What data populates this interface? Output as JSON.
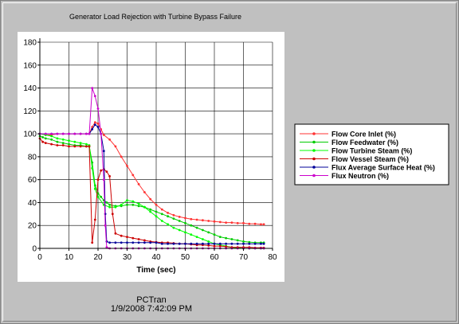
{
  "chart_data": {
    "type": "line",
    "title": "Generator Load Rejection with Turbine Bypass Failure",
    "xlabel": "Time (sec)",
    "ylabel": "",
    "xlim": [
      0,
      80
    ],
    "ylim": [
      0,
      180
    ],
    "xticks": [
      "0",
      "10",
      "20",
      "30",
      "40",
      "50",
      "60",
      "70",
      "80"
    ],
    "yticks": [
      "0",
      "20",
      "40",
      "60",
      "80",
      "100",
      "120",
      "140",
      "160",
      "180"
    ],
    "grid": true,
    "legend_position": "right",
    "series": [
      {
        "name": "Flow Core Inlet (%)",
        "color": "#ff3333",
        "points": [
          [
            0,
            100
          ],
          [
            2,
            99
          ],
          [
            4,
            99
          ],
          [
            6,
            100
          ],
          [
            8,
            100
          ],
          [
            10,
            100
          ],
          [
            12,
            100
          ],
          [
            14,
            100
          ],
          [
            16,
            100
          ],
          [
            17,
            100
          ],
          [
            18,
            106
          ],
          [
            19,
            110
          ],
          [
            20,
            109
          ],
          [
            21,
            104
          ],
          [
            22,
            99
          ],
          [
            24,
            95
          ],
          [
            26,
            89
          ],
          [
            28,
            80
          ],
          [
            30,
            72
          ],
          [
            32,
            64
          ],
          [
            34,
            56
          ],
          [
            36,
            49
          ],
          [
            38,
            43
          ],
          [
            40,
            38
          ],
          [
            42,
            34
          ],
          [
            44,
            31
          ],
          [
            46,
            29
          ],
          [
            48,
            27.5
          ],
          [
            50,
            26.5
          ],
          [
            52,
            25.5
          ],
          [
            54,
            25
          ],
          [
            56,
            24.5
          ],
          [
            58,
            24
          ],
          [
            60,
            23.5
          ],
          [
            62,
            23
          ],
          [
            64,
            22.5
          ],
          [
            66,
            22.5
          ],
          [
            68,
            22
          ],
          [
            70,
            22
          ],
          [
            72,
            21.5
          ],
          [
            74,
            21.5
          ],
          [
            76,
            21
          ],
          [
            77,
            21
          ]
        ]
      },
      {
        "name": "Flow Feedwater (%)",
        "color": "#00cc00",
        "points": [
          [
            0,
            98
          ],
          [
            1,
            97
          ],
          [
            2,
            96
          ],
          [
            4,
            95
          ],
          [
            6,
            93
          ],
          [
            8,
            92
          ],
          [
            10,
            91
          ],
          [
            12,
            90
          ],
          [
            14,
            90
          ],
          [
            16,
            89
          ],
          [
            17,
            89
          ],
          [
            18,
            75
          ],
          [
            19,
            55
          ],
          [
            20,
            48
          ],
          [
            21,
            45
          ],
          [
            22,
            42
          ],
          [
            23,
            40
          ],
          [
            24,
            38
          ],
          [
            26,
            37
          ],
          [
            28,
            37
          ],
          [
            30,
            38
          ],
          [
            32,
            38
          ],
          [
            34,
            37
          ],
          [
            36,
            36
          ],
          [
            38,
            34
          ],
          [
            40,
            32
          ],
          [
            42,
            30
          ],
          [
            44,
            28
          ],
          [
            46,
            26
          ],
          [
            48,
            24
          ],
          [
            50,
            22
          ],
          [
            52,
            20
          ],
          [
            54,
            18
          ],
          [
            56,
            16
          ],
          [
            58,
            14
          ],
          [
            60,
            12
          ],
          [
            62,
            10
          ],
          [
            64,
            9
          ],
          [
            66,
            8
          ],
          [
            68,
            7
          ],
          [
            70,
            6
          ],
          [
            72,
            5.5
          ],
          [
            74,
            5
          ],
          [
            76,
            5
          ],
          [
            77,
            5
          ]
        ]
      },
      {
        "name": "Flow Turbine Steam (%)",
        "color": "#00ff00",
        "points": [
          [
            0,
            100
          ],
          [
            2,
            99
          ],
          [
            4,
            98
          ],
          [
            6,
            96
          ],
          [
            8,
            95
          ],
          [
            10,
            94
          ],
          [
            12,
            93
          ],
          [
            14,
            92
          ],
          [
            16,
            91
          ],
          [
            17,
            90
          ],
          [
            18,
            70
          ],
          [
            19,
            52
          ],
          [
            20,
            45
          ],
          [
            22,
            38
          ],
          [
            24,
            36
          ],
          [
            26,
            36
          ],
          [
            28,
            38
          ],
          [
            30,
            42
          ],
          [
            32,
            41
          ],
          [
            34,
            39
          ],
          [
            36,
            36
          ],
          [
            38,
            32
          ],
          [
            40,
            28
          ],
          [
            42,
            24
          ],
          [
            44,
            21
          ],
          [
            46,
            18
          ],
          [
            48,
            16
          ],
          [
            50,
            14
          ],
          [
            52,
            12
          ],
          [
            54,
            10
          ],
          [
            56,
            8
          ],
          [
            58,
            6
          ],
          [
            60,
            4
          ],
          [
            62,
            3
          ],
          [
            64,
            2
          ],
          [
            66,
            1
          ],
          [
            68,
            0.5
          ],
          [
            70,
            0
          ],
          [
            72,
            0
          ],
          [
            74,
            0
          ],
          [
            76,
            0
          ],
          [
            77,
            0
          ]
        ]
      },
      {
        "name": "Flow Vessel Steam (%)",
        "color": "#cc0000",
        "points": [
          [
            0,
            96
          ],
          [
            1,
            93
          ],
          [
            2,
            92
          ],
          [
            4,
            91
          ],
          [
            6,
            90
          ],
          [
            8,
            90
          ],
          [
            10,
            89
          ],
          [
            12,
            89
          ],
          [
            14,
            89
          ],
          [
            16,
            89
          ],
          [
            17,
            89
          ],
          [
            18,
            5
          ],
          [
            19,
            25
          ],
          [
            20,
            60
          ],
          [
            21,
            68
          ],
          [
            22,
            69
          ],
          [
            23,
            67
          ],
          [
            24,
            63
          ],
          [
            25,
            30
          ],
          [
            26,
            13
          ],
          [
            28,
            11
          ],
          [
            30,
            10
          ],
          [
            32,
            9
          ],
          [
            34,
            8
          ],
          [
            36,
            7
          ],
          [
            38,
            6
          ],
          [
            40,
            5.5
          ],
          [
            42,
            5
          ],
          [
            44,
            5
          ],
          [
            46,
            4.5
          ],
          [
            48,
            4
          ],
          [
            50,
            4
          ],
          [
            52,
            3.5
          ],
          [
            54,
            3
          ],
          [
            56,
            3
          ],
          [
            58,
            2.5
          ],
          [
            60,
            2
          ],
          [
            62,
            2
          ],
          [
            64,
            1.5
          ],
          [
            66,
            1
          ],
          [
            68,
            1
          ],
          [
            70,
            1
          ],
          [
            72,
            1
          ],
          [
            74,
            0.5
          ],
          [
            76,
            0.5
          ],
          [
            77,
            0.5
          ]
        ]
      },
      {
        "name": "Flux Average Surface Heat (%)",
        "color": "#000099",
        "points": [
          [
            0,
            100
          ],
          [
            2,
            100
          ],
          [
            4,
            100
          ],
          [
            6,
            100
          ],
          [
            8,
            100
          ],
          [
            10,
            100
          ],
          [
            12,
            100
          ],
          [
            14,
            100
          ],
          [
            16,
            100
          ],
          [
            17,
            100
          ],
          [
            18,
            104
          ],
          [
            19,
            108
          ],
          [
            20,
            106
          ],
          [
            21,
            100
          ],
          [
            22,
            85
          ],
          [
            22.5,
            30
          ],
          [
            23,
            6
          ],
          [
            24,
            5
          ],
          [
            26,
            5
          ],
          [
            28,
            5
          ],
          [
            30,
            5
          ],
          [
            32,
            5
          ],
          [
            34,
            5
          ],
          [
            36,
            5
          ],
          [
            38,
            5
          ],
          [
            40,
            5
          ],
          [
            42,
            4
          ],
          [
            44,
            4
          ],
          [
            46,
            4
          ],
          [
            48,
            4
          ],
          [
            50,
            4
          ],
          [
            52,
            4
          ],
          [
            54,
            4
          ],
          [
            56,
            4
          ],
          [
            58,
            4
          ],
          [
            60,
            4
          ],
          [
            62,
            4
          ],
          [
            64,
            4
          ],
          [
            66,
            4
          ],
          [
            68,
            4
          ],
          [
            70,
            4
          ],
          [
            72,
            4
          ],
          [
            74,
            4
          ],
          [
            76,
            4
          ],
          [
            77,
            4
          ]
        ]
      },
      {
        "name": "Flux Neutron (%)",
        "color": "#cc00cc",
        "points": [
          [
            0,
            100
          ],
          [
            2,
            100
          ],
          [
            4,
            100
          ],
          [
            6,
            100
          ],
          [
            8,
            100
          ],
          [
            10,
            100
          ],
          [
            12,
            100
          ],
          [
            14,
            100
          ],
          [
            16,
            100
          ],
          [
            17,
            100
          ],
          [
            18,
            140
          ],
          [
            19,
            133
          ],
          [
            20,
            122
          ],
          [
            21,
            100
          ],
          [
            22,
            60
          ],
          [
            22.5,
            20
          ],
          [
            23,
            1
          ],
          [
            24,
            0
          ],
          [
            26,
            0
          ],
          [
            28,
            0
          ],
          [
            30,
            0
          ],
          [
            32,
            0
          ],
          [
            34,
            0
          ],
          [
            36,
            0
          ],
          [
            38,
            0
          ],
          [
            40,
            0
          ],
          [
            42,
            0
          ],
          [
            44,
            0
          ],
          [
            46,
            0
          ],
          [
            48,
            0
          ],
          [
            50,
            0
          ],
          [
            52,
            0
          ],
          [
            54,
            0
          ],
          [
            56,
            0
          ],
          [
            58,
            0
          ],
          [
            60,
            0
          ],
          [
            62,
            0
          ],
          [
            64,
            0
          ],
          [
            66,
            0
          ],
          [
            68,
            0
          ],
          [
            70,
            0
          ],
          [
            72,
            0
          ],
          [
            74,
            0
          ],
          [
            76,
            0
          ],
          [
            77,
            0
          ]
        ]
      }
    ]
  },
  "footer": {
    "program": "PCTran",
    "timestamp": "1/9/2008 7:42:09 PM"
  }
}
